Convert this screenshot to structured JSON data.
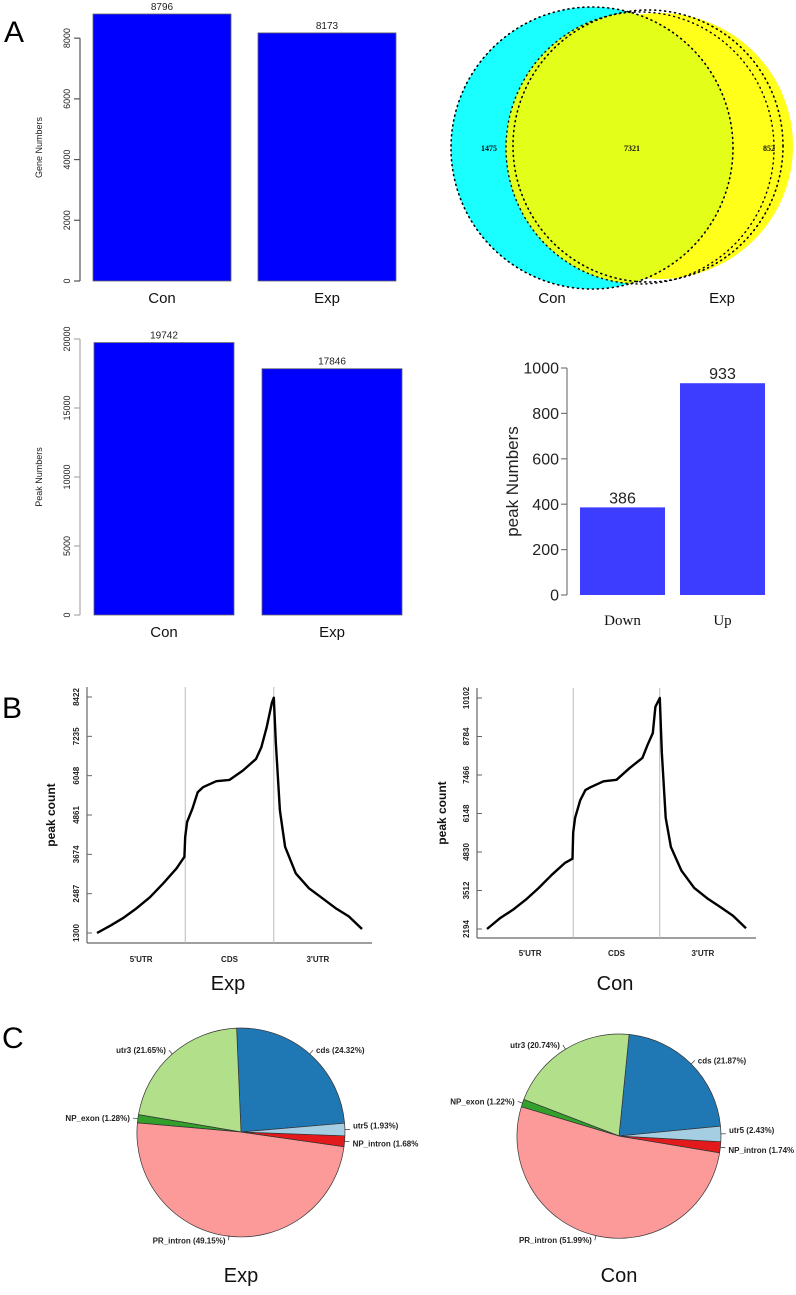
{
  "panels": {
    "A": "A",
    "B": "B",
    "C": "C"
  },
  "chart_data": [
    {
      "id": "gene-numbers",
      "type": "bar",
      "title": "",
      "xlabel": "",
      "ylabel": "Gene Numbers",
      "categories": [
        "Con",
        "Exp"
      ],
      "values": [
        8796,
        8173
      ],
      "value_labels": [
        "8796",
        "8173"
      ],
      "yticks": [
        0,
        2000,
        4000,
        6000,
        8000
      ],
      "ytick_labels": [
        "0",
        "2000",
        "4000",
        "6000",
        "8000"
      ],
      "ylim": [
        0,
        8796
      ],
      "color": "#0000FF",
      "grid": false
    },
    {
      "id": "venn",
      "type": "venn",
      "sets": [
        "Con",
        "Exp"
      ],
      "only_con": 1475,
      "intersection": 7321,
      "only_exp": 852,
      "labels": {
        "only_con": "1475",
        "intersection": "7321",
        "only_exp": "852"
      },
      "colors": {
        "con": "#19FFFF",
        "exp": "#FFFF19",
        "overlap": "#E3FF19"
      }
    },
    {
      "id": "peak-numbers",
      "type": "bar",
      "title": "",
      "xlabel": "",
      "ylabel": "Peak Numbers",
      "categories": [
        "Con",
        "Exp"
      ],
      "values": [
        19742,
        17846
      ],
      "value_labels": [
        "19742",
        "17846"
      ],
      "yticks": [
        0,
        5000,
        10000,
        15000,
        20000
      ],
      "ytick_labels": [
        "0",
        "5000",
        "10000",
        "15000",
        "20000"
      ],
      "ylim": [
        0,
        20000
      ],
      "color": "#0000FF",
      "grid": false
    },
    {
      "id": "diff-peaks",
      "type": "bar",
      "title": "",
      "xlabel": "",
      "ylabel": "peak Numbers",
      "categories": [
        "Down",
        "Up"
      ],
      "values": [
        386,
        933
      ],
      "value_labels": [
        "386",
        "933"
      ],
      "yticks": [
        0,
        200,
        400,
        600,
        800,
        1000
      ],
      "ytick_labels": [
        "0",
        "200",
        "400",
        "600",
        "800",
        "1000"
      ],
      "ylim": [
        0,
        1000
      ],
      "color": "#3D3DFF",
      "grid": false
    },
    {
      "id": "metagene-exp",
      "type": "line",
      "title": "Exp",
      "xlabel": "",
      "ylabel": "peak count",
      "regions": [
        "5'UTR",
        "CDS",
        "3'UTR"
      ],
      "yticks": [
        1300,
        2487,
        3674,
        4861,
        6048,
        7235,
        8422
      ],
      "ytick_labels": [
        "1300",
        "2487",
        "3674",
        "4861",
        "6048",
        "7235",
        "8422"
      ],
      "ylim": [
        1300,
        8422
      ],
      "x": [
        0,
        0.05,
        0.1,
        0.15,
        0.2,
        0.25,
        0.3,
        0.33,
        0.333,
        0.34,
        0.36,
        0.38,
        0.4,
        0.45,
        0.5,
        0.55,
        0.6,
        0.62,
        0.64,
        0.66,
        0.667,
        0.675,
        0.69,
        0.71,
        0.75,
        0.8,
        0.85,
        0.9,
        0.95,
        1.0
      ],
      "y": [
        1300,
        1520,
        1760,
        2050,
        2380,
        2800,
        3250,
        3600,
        4200,
        4650,
        5050,
        5550,
        5700,
        5880,
        5920,
        6200,
        6550,
        6900,
        7500,
        8250,
        8400,
        7000,
        5000,
        3900,
        3100,
        2650,
        2350,
        2050,
        1800,
        1420
      ],
      "boundaries": [
        0.333,
        0.667
      ],
      "color": "#000000"
    },
    {
      "id": "metagene-con",
      "type": "line",
      "title": "Con",
      "xlabel": "",
      "ylabel": "peak count",
      "regions": [
        "5'UTR",
        "CDS",
        "3'UTR"
      ],
      "yticks": [
        2194,
        3512,
        4830,
        6148,
        7466,
        8784,
        10102
      ],
      "ytick_labels": [
        "2194",
        "3512",
        "4830",
        "6148",
        "7466",
        "8784",
        "10102"
      ],
      "ylim": [
        2194,
        10102
      ],
      "x": [
        0,
        0.05,
        0.1,
        0.15,
        0.2,
        0.25,
        0.3,
        0.33,
        0.333,
        0.34,
        0.36,
        0.38,
        0.4,
        0.45,
        0.5,
        0.55,
        0.6,
        0.62,
        0.64,
        0.65,
        0.667,
        0.675,
        0.69,
        0.71,
        0.75,
        0.8,
        0.85,
        0.9,
        0.95,
        1.0
      ],
      "y": [
        2194,
        2560,
        2850,
        3200,
        3600,
        4050,
        4450,
        4600,
        5500,
        6000,
        6600,
        6950,
        7050,
        7250,
        7300,
        7700,
        8050,
        8500,
        8900,
        9800,
        10102,
        8250,
        6000,
        5000,
        4200,
        3600,
        3250,
        2950,
        2650,
        2220
      ],
      "boundaries": [
        0.333,
        0.667
      ],
      "color": "#000000"
    },
    {
      "id": "pie-exp",
      "type": "pie",
      "title": "Exp",
      "slices": [
        {
          "name": "cds",
          "value": 24.32,
          "label": "cds (24.32%)",
          "color": "#1F78B4"
        },
        {
          "name": "utr3",
          "value": 21.65,
          "label": "utr3 (21.65%)",
          "color": "#B2DF8A"
        },
        {
          "name": "NP_exon",
          "value": 1.28,
          "label": "NP_exon (1.28%)",
          "color": "#33A02C"
        },
        {
          "name": "PR_intron",
          "value": 49.15,
          "label": "PR_intron (49.15%)",
          "color": "#FB9A99"
        },
        {
          "name": "NP_intron",
          "value": 1.68,
          "label": "NP_intron (1.68%",
          "color": "#E31A1C"
        },
        {
          "name": "utr5",
          "value": 1.93,
          "label": "utr5 (1.93%)",
          "color": "#A6CEE3"
        }
      ]
    },
    {
      "id": "pie-con",
      "type": "pie",
      "title": "Con",
      "slices": [
        {
          "name": "cds",
          "value": 21.87,
          "label": "cds (21.87%)",
          "color": "#1F78B4"
        },
        {
          "name": "utr3",
          "value": 20.74,
          "label": "utr3 (20.74%)",
          "color": "#B2DF8A"
        },
        {
          "name": "NP_exon",
          "value": 1.22,
          "label": "NP_exon (1.22%)",
          "color": "#33A02C"
        },
        {
          "name": "PR_intron",
          "value": 51.99,
          "label": "PR_intron (51.99%)",
          "color": "#FB9A99"
        },
        {
          "name": "NP_intron",
          "value": 1.74,
          "label": "NP_intron (1.74%",
          "color": "#E31A1C"
        },
        {
          "name": "utr5",
          "value": 2.43,
          "label": "utr5 (2.43%)",
          "color": "#A6CEE3"
        }
      ]
    }
  ]
}
